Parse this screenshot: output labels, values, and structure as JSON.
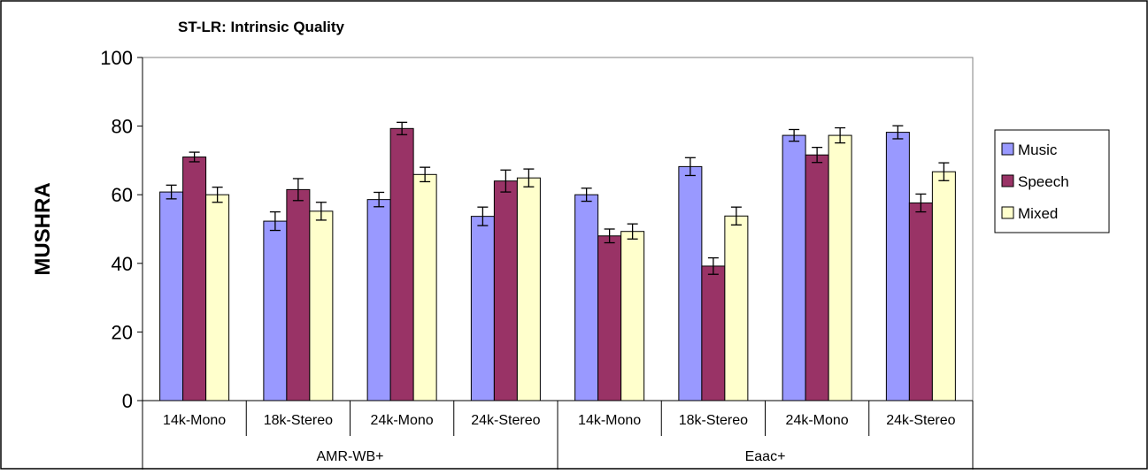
{
  "chart_data": {
    "type": "bar",
    "title": "ST-LR:  Intrinsic Quality",
    "ylabel": "MUSHRA",
    "xlabel": "",
    "ylim": [
      0,
      100
    ],
    "yticks": [
      0,
      20,
      40,
      60,
      80,
      100
    ],
    "grid": false,
    "legend_position": "right",
    "categories": [
      "14k-Mono",
      "18k-Stereo",
      "24k-Mono",
      "24k-Stereo",
      "14k-Mono",
      "18k-Stereo",
      "24k-Mono",
      "24k-Stereo"
    ],
    "groups": [
      {
        "label": "AMR-WB+",
        "span": [
          0,
          3
        ]
      },
      {
        "label": "Eaac+",
        "span": [
          4,
          7
        ]
      }
    ],
    "series": [
      {
        "name": "Music",
        "color": "#9999ff",
        "values": [
          60.8,
          52.3,
          58.6,
          53.7,
          60.0,
          68.2,
          77.3,
          78.2
        ],
        "errors": [
          2.0,
          2.7,
          2.1,
          2.7,
          1.9,
          2.6,
          1.7,
          1.9
        ]
      },
      {
        "name": "Speech",
        "color": "#993366",
        "values": [
          71.0,
          61.5,
          79.3,
          64.0,
          48.0,
          39.2,
          71.6,
          57.6
        ],
        "errors": [
          1.4,
          3.2,
          1.8,
          3.2,
          2.0,
          2.4,
          2.2,
          2.6
        ]
      },
      {
        "name": "Mixed",
        "color": "#ffffcc",
        "values": [
          60.0,
          55.2,
          65.9,
          64.9,
          49.3,
          53.8,
          77.3,
          66.7
        ],
        "errors": [
          2.2,
          2.6,
          2.1,
          2.6,
          2.2,
          2.6,
          2.2,
          2.6
        ]
      }
    ]
  }
}
